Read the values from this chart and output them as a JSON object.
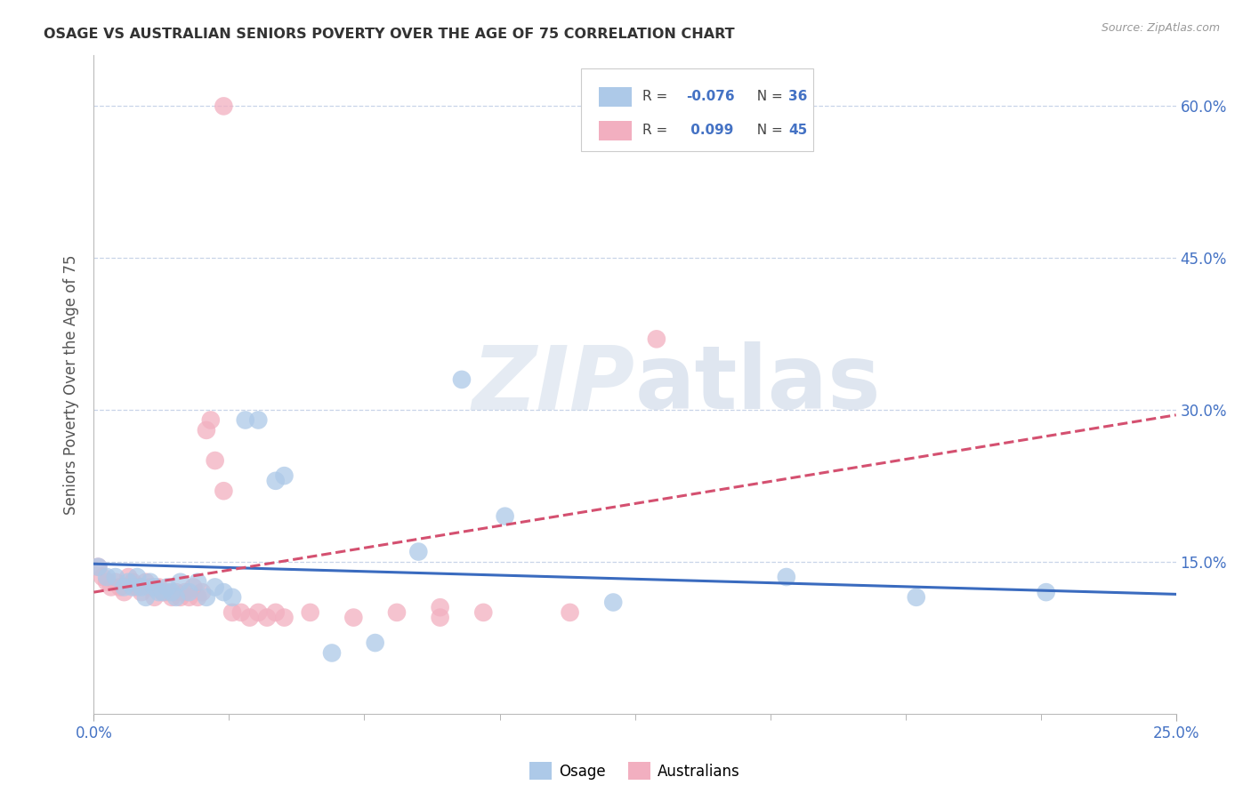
{
  "title": "OSAGE VS AUSTRALIAN SENIORS POVERTY OVER THE AGE OF 75 CORRELATION CHART",
  "source": "Source: ZipAtlas.com",
  "ylabel": "Seniors Poverty Over the Age of 75",
  "xlim": [
    0.0,
    0.25
  ],
  "ylim": [
    0.0,
    0.65
  ],
  "yticks": [
    0.15,
    0.3,
    0.45,
    0.6
  ],
  "ytick_labels": [
    "15.0%",
    "30.0%",
    "45.0%",
    "60.0%"
  ],
  "minor_xticks": [
    0.03125,
    0.0625,
    0.09375,
    0.125,
    0.15625,
    0.1875,
    0.21875
  ],
  "watermark_zip": "ZIP",
  "watermark_atlas": "atlas",
  "osage_color": "#adc9e8",
  "australians_color": "#f2afc0",
  "osage_line_color": "#3a6bbf",
  "australians_line_color": "#d45070",
  "osage_points_x": [
    0.001,
    0.003,
    0.005,
    0.007,
    0.008,
    0.009,
    0.01,
    0.011,
    0.012,
    0.013,
    0.014,
    0.015,
    0.016,
    0.017,
    0.018,
    0.019,
    0.02,
    0.022,
    0.024,
    0.026,
    0.028,
    0.03,
    0.032,
    0.035,
    0.038,
    0.042,
    0.044,
    0.075,
    0.12,
    0.16,
    0.19,
    0.22,
    0.095,
    0.065,
    0.055,
    0.085
  ],
  "osage_points_y": [
    0.145,
    0.135,
    0.135,
    0.125,
    0.13,
    0.125,
    0.135,
    0.125,
    0.115,
    0.13,
    0.125,
    0.12,
    0.12,
    0.125,
    0.12,
    0.115,
    0.13,
    0.12,
    0.13,
    0.115,
    0.125,
    0.12,
    0.115,
    0.29,
    0.29,
    0.23,
    0.235,
    0.16,
    0.11,
    0.135,
    0.115,
    0.12,
    0.195,
    0.07,
    0.06,
    0.33
  ],
  "australians_points_x": [
    0.001,
    0.002,
    0.003,
    0.004,
    0.005,
    0.006,
    0.007,
    0.008,
    0.009,
    0.01,
    0.011,
    0.012,
    0.013,
    0.014,
    0.015,
    0.016,
    0.017,
    0.018,
    0.019,
    0.02,
    0.021,
    0.022,
    0.023,
    0.024,
    0.025,
    0.026,
    0.027,
    0.028,
    0.03,
    0.032,
    0.034,
    0.036,
    0.038,
    0.04,
    0.042,
    0.044,
    0.05,
    0.06,
    0.07,
    0.08,
    0.09,
    0.11,
    0.13,
    0.08,
    0.03
  ],
  "australians_points_y": [
    0.145,
    0.135,
    0.13,
    0.125,
    0.13,
    0.125,
    0.12,
    0.135,
    0.13,
    0.125,
    0.12,
    0.13,
    0.125,
    0.115,
    0.125,
    0.12,
    0.12,
    0.115,
    0.12,
    0.115,
    0.12,
    0.115,
    0.125,
    0.115,
    0.12,
    0.28,
    0.29,
    0.25,
    0.22,
    0.1,
    0.1,
    0.095,
    0.1,
    0.095,
    0.1,
    0.095,
    0.1,
    0.095,
    0.1,
    0.095,
    0.1,
    0.1,
    0.37,
    0.105,
    0.6
  ],
  "osage_trend_x": [
    0.0,
    0.25
  ],
  "osage_trend_y": [
    0.148,
    0.118
  ],
  "australians_trend_x": [
    0.0,
    0.25
  ],
  "australians_trend_y": [
    0.12,
    0.295
  ],
  "background_color": "#ffffff",
  "grid_color": "#c8d4e8",
  "title_color": "#333333",
  "right_ytick_color": "#4472c4",
  "ylabel_color": "#555555"
}
